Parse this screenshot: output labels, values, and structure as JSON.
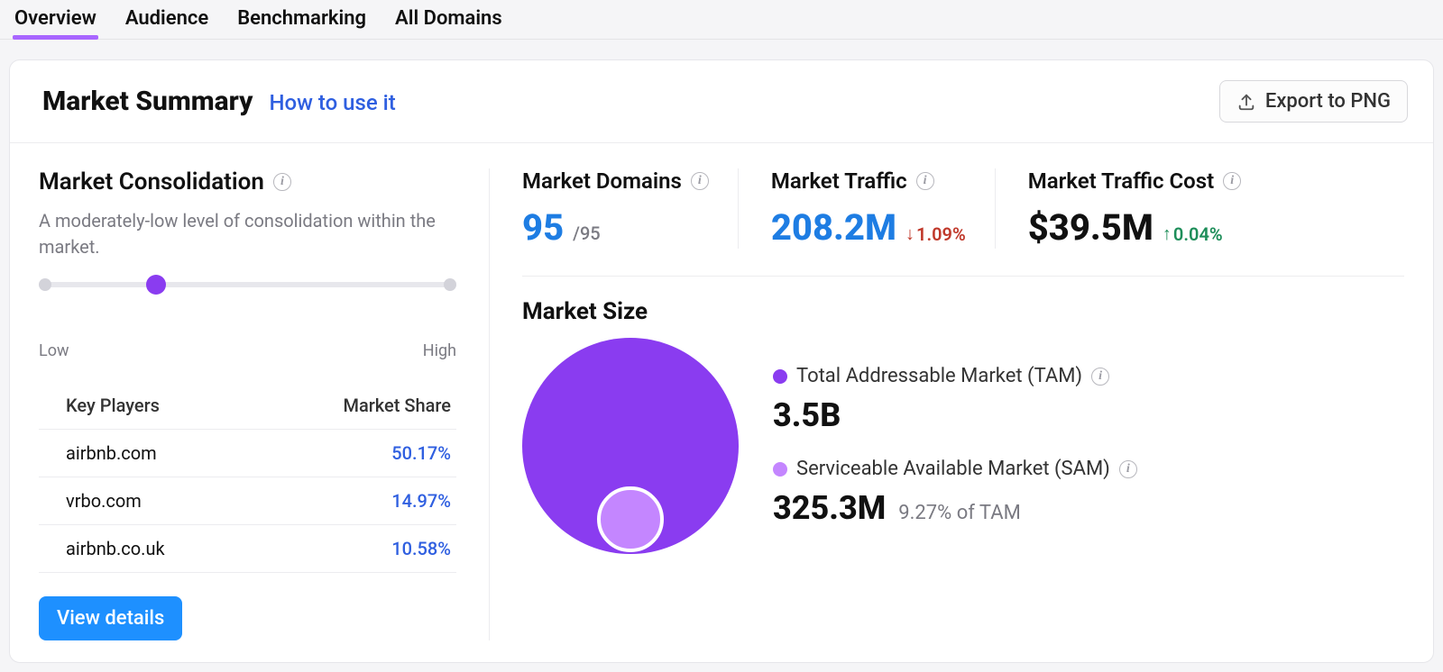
{
  "colors": {
    "accent_purple": "#8a3cf0",
    "accent_purple_light": "#c486ff",
    "link_blue": "#2f5fe0",
    "value_blue": "#1e7de3",
    "button_blue": "#1e90ff",
    "delta_down": "#c0392b",
    "delta_up": "#1e8e5a",
    "track_grey": "#e7e7ec",
    "border_grey": "#ececef",
    "text_grey": "#7a7a82",
    "card_bg": "#ffffff",
    "page_bg": "#f5f5f7"
  },
  "tabs": {
    "items": [
      "Overview",
      "Audience",
      "Benchmarking",
      "All Domains"
    ],
    "active_index": 0
  },
  "header": {
    "title": "Market Summary",
    "help_link": "How to use it",
    "export_label": "Export to PNG"
  },
  "consolidation": {
    "title": "Market Consolidation",
    "description": "A moderately-low level of consolidation within the market.",
    "low_label": "Low",
    "high_label": "High",
    "position_pct": 28,
    "key_players_header": "Key Players",
    "market_share_header": "Market Share",
    "players": [
      {
        "name": "airbnb.com",
        "share": "50.17%"
      },
      {
        "name": "vrbo.com",
        "share": "14.97%"
      },
      {
        "name": "airbnb.co.uk",
        "share": "10.58%"
      }
    ],
    "view_details_label": "View details"
  },
  "metrics": {
    "domains": {
      "title": "Market Domains",
      "value": "95",
      "suffix": "/95"
    },
    "traffic": {
      "title": "Market Traffic",
      "value": "208.2M",
      "delta_dir": "down",
      "delta_arrow": "↓",
      "delta_value": "1.09%"
    },
    "cost": {
      "title": "Market Traffic Cost",
      "value": "$39.5M",
      "delta_dir": "up",
      "delta_arrow": "↑",
      "delta_value": "0.04%"
    }
  },
  "market_size": {
    "title": "Market Size",
    "outer_color": "#8a3cf0",
    "inner_color": "#c486ff",
    "inner_diameter_ratio": 0.305,
    "tam": {
      "label": "Total Addressable Market (TAM)",
      "value": "3.5B"
    },
    "sam": {
      "label": "Serviceable Available Market (SAM)",
      "value": "325.3M",
      "note": "9.27% of TAM"
    }
  }
}
